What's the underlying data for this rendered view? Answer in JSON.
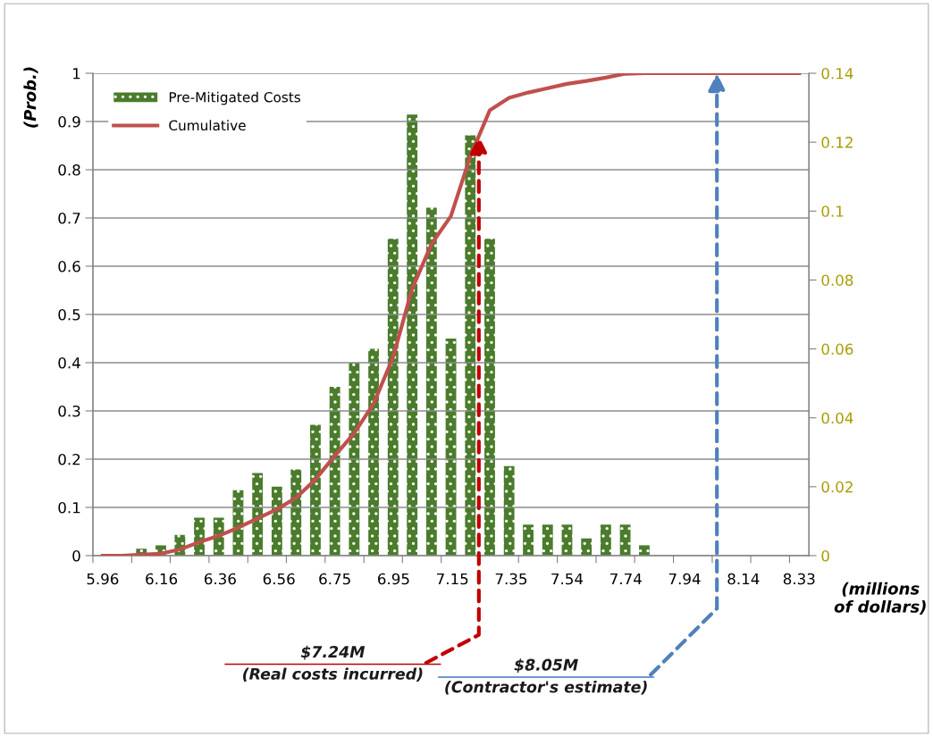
{
  "chart_data": {
    "type": "bar",
    "ylabel": "(Prob.)",
    "xlabel": "(millions\nof dollars)",
    "xlim": [
      5.927,
      8.363
    ],
    "xticks": [
      5.96,
      6.16,
      6.36,
      6.56,
      6.75,
      6.95,
      7.15,
      7.35,
      7.54,
      7.74,
      7.94,
      8.14,
      8.33,
      {
        "value": 5.927,
        "label": null
      },
      {
        "value": 6.059,
        "label": null
      },
      {
        "value": 6.19,
        "label": null
      },
      {
        "value": 6.322,
        "label": null
      },
      {
        "value": 6.454,
        "label": null
      },
      {
        "value": 6.585,
        "label": null
      },
      {
        "value": 6.717,
        "label": null
      },
      {
        "value": 6.849,
        "label": null
      },
      {
        "value": 6.98,
        "label": null
      },
      {
        "value": 7.112,
        "label": null
      },
      {
        "value": 7.244,
        "label": null
      },
      {
        "value": 7.375,
        "label": null
      },
      {
        "value": 7.507,
        "label": null
      },
      {
        "value": 7.639,
        "label": null
      },
      {
        "value": 7.77,
        "label": null
      },
      {
        "value": 7.902,
        "label": null
      },
      {
        "value": 8.034,
        "label": null
      },
      {
        "value": 8.165,
        "label": null
      },
      {
        "value": 8.297,
        "label": null
      }
    ],
    "ylim": [
      0,
      1
    ],
    "yticks": [
      0,
      0.1,
      0.2,
      0.3,
      0.4,
      0.5,
      0.6,
      0.7,
      0.8,
      0.9,
      1
    ],
    "y2lim": [
      0,
      0.14
    ],
    "y2ticks": [
      0,
      0.02,
      0.04,
      0.06,
      0.08,
      0.1,
      0.12,
      0.14
    ],
    "series": [
      {
        "name": "Pre-Mitigated Costs",
        "axis": "y2",
        "color": "#4a7c2c",
        "x": [
          6.092,
          6.158,
          6.223,
          6.289,
          6.355,
          6.421,
          6.487,
          6.553,
          6.618,
          6.684,
          6.75,
          6.816,
          6.882,
          6.948,
          7.013,
          7.079,
          7.145,
          7.211,
          7.277,
          7.343,
          7.408,
          7.474,
          7.54,
          7.606,
          7.672,
          7.738,
          7.803
        ],
        "values": [
          0.002,
          0.003,
          0.006,
          0.011,
          0.011,
          0.019,
          0.024,
          0.02,
          0.025,
          0.038,
          0.049,
          0.056,
          0.06,
          0.092,
          0.128,
          0.101,
          0.063,
          0.122,
          0.092,
          0.026,
          0.009,
          0.009,
          0.009,
          0.005,
          0.009,
          0.009,
          0.003
        ]
      },
      {
        "name": "Cumulative",
        "type": "line",
        "color": "#c0504d",
        "x": [
          5.96,
          6.026,
          6.092,
          6.158,
          6.223,
          6.289,
          6.355,
          6.421,
          6.487,
          6.553,
          6.618,
          6.684,
          6.75,
          6.816,
          6.882,
          6.948,
          7.013,
          7.079,
          7.145,
          7.211,
          7.277,
          7.343,
          7.408,
          7.474,
          7.54,
          7.606,
          7.672,
          7.738,
          7.803,
          8.33
        ],
        "values": [
          0,
          0,
          0.002,
          0.004,
          0.013,
          0.028,
          0.041,
          0.058,
          0.077,
          0.096,
          0.12,
          0.158,
          0.207,
          0.254,
          0.315,
          0.411,
          0.553,
          0.646,
          0.704,
          0.828,
          0.923,
          0.949,
          0.96,
          0.969,
          0.978,
          0.984,
          0.991,
          0.999,
          1,
          1
        ]
      }
    ],
    "annotations": [
      {
        "text": "$7.24M\n(Real costs incurred)",
        "x": 7.24,
        "y": 0.87
      },
      {
        "text": "$8.05M\n(Contractor's estimate)",
        "x": 8.05,
        "y": 1
      }
    ],
    "grid": "y",
    "legend": "top left"
  }
}
